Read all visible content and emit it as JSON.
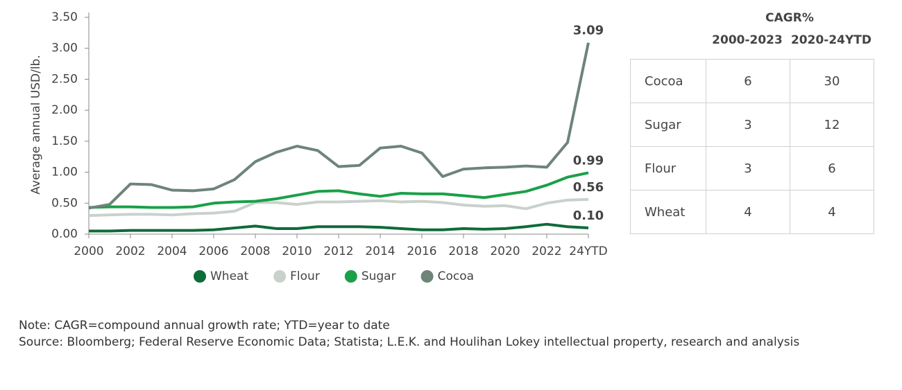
{
  "chart_data": {
    "type": "line",
    "y_label": "Average annual USD/lb.",
    "x": [
      2000,
      2001,
      2002,
      2003,
      2004,
      2005,
      2006,
      2007,
      2008,
      2009,
      2010,
      2011,
      2012,
      2013,
      2014,
      2015,
      2016,
      2017,
      2018,
      2019,
      2020,
      2021,
      2022,
      2023,
      2024
    ],
    "xlim": [
      2000,
      2024
    ],
    "xticks": [
      2000,
      2002,
      2004,
      2006,
      2008,
      2010,
      2012,
      2014,
      2016,
      2018,
      2020,
      2022,
      {
        "value": 2024,
        "label": "24YTD"
      }
    ],
    "ylim": [
      0,
      3.5
    ],
    "yticks": [
      {
        "value": 0,
        "label": "0.00"
      },
      {
        "value": 0.5,
        "label": "0.50"
      },
      {
        "value": 1,
        "label": "1.00"
      },
      {
        "value": 1.5,
        "label": "1.50"
      },
      {
        "value": 2,
        "label": "2.00"
      },
      {
        "value": 2.5,
        "label": "2.50"
      },
      {
        "value": 3,
        "label": "3.00"
      },
      {
        "value": 3.5,
        "label": "3.50"
      }
    ],
    "series": [
      {
        "name": "Wheat",
        "color": "#0e6b3a",
        "values": [
          0.05,
          0.05,
          0.06,
          0.06,
          0.06,
          0.06,
          0.07,
          0.1,
          0.13,
          0.09,
          0.09,
          0.12,
          0.12,
          0.12,
          0.11,
          0.09,
          0.07,
          0.07,
          0.09,
          0.08,
          0.09,
          0.12,
          0.16,
          0.12,
          0.1
        ],
        "value_labels": [
          null,
          null,
          null,
          null,
          null,
          null,
          null,
          null,
          null,
          null,
          null,
          null,
          null,
          null,
          null,
          null,
          null,
          null,
          null,
          null,
          null,
          null,
          null,
          null,
          "0.10"
        ]
      },
      {
        "name": "Flour",
        "color": "#c9d1cc",
        "values": [
          0.3,
          0.31,
          0.32,
          0.32,
          0.31,
          0.33,
          0.34,
          0.37,
          0.51,
          0.51,
          0.48,
          0.52,
          0.52,
          0.53,
          0.54,
          0.52,
          0.53,
          0.51,
          0.47,
          0.45,
          0.46,
          0.41,
          0.5,
          0.55,
          0.56
        ],
        "value_labels": [
          null,
          null,
          null,
          null,
          null,
          null,
          null,
          null,
          null,
          null,
          null,
          null,
          null,
          null,
          null,
          null,
          null,
          null,
          null,
          null,
          null,
          null,
          null,
          null,
          "0.56"
        ]
      },
      {
        "name": "Sugar",
        "color": "#1aa048",
        "values": [
          0.43,
          0.44,
          0.44,
          0.43,
          0.43,
          0.44,
          0.5,
          0.52,
          0.53,
          0.57,
          0.63,
          0.69,
          0.7,
          0.65,
          0.61,
          0.66,
          0.65,
          0.65,
          0.62,
          0.59,
          0.64,
          0.69,
          0.79,
          0.92,
          0.99
        ],
        "value_labels": [
          null,
          null,
          null,
          null,
          null,
          null,
          null,
          null,
          null,
          null,
          null,
          null,
          null,
          null,
          null,
          null,
          null,
          null,
          null,
          null,
          null,
          null,
          null,
          null,
          "0.99"
        ]
      },
      {
        "name": "Cocoa",
        "color": "#6e8479",
        "values": [
          0.42,
          0.48,
          0.81,
          0.8,
          0.71,
          0.7,
          0.73,
          0.88,
          1.17,
          1.32,
          1.42,
          1.35,
          1.09,
          1.11,
          1.39,
          1.42,
          1.31,
          0.93,
          1.05,
          1.07,
          1.08,
          1.1,
          1.08,
          1.48,
          3.09
        ],
        "value_labels": [
          null,
          null,
          null,
          null,
          null,
          null,
          null,
          null,
          null,
          null,
          null,
          null,
          null,
          null,
          null,
          null,
          null,
          null,
          null,
          null,
          null,
          null,
          null,
          null,
          "3.09"
        ]
      }
    ]
  },
  "table": {
    "title": "CAGR%",
    "columns": [
      "2000-2023",
      "2020-24YTD"
    ],
    "rows": [
      [
        "Cocoa",
        "6",
        "30"
      ],
      [
        "Sugar",
        "3",
        "12"
      ],
      [
        "Flour",
        "3",
        "6"
      ],
      [
        "Wheat",
        "4",
        "4"
      ]
    ]
  },
  "notes": [
    "Note: CAGR=compound annual growth rate; YTD=year to date",
    "Source: Bloomberg; Federal Reserve Economic Data; Statista; L.E.K. and Houlihan Lokey intellectual property, research and analysis"
  ]
}
